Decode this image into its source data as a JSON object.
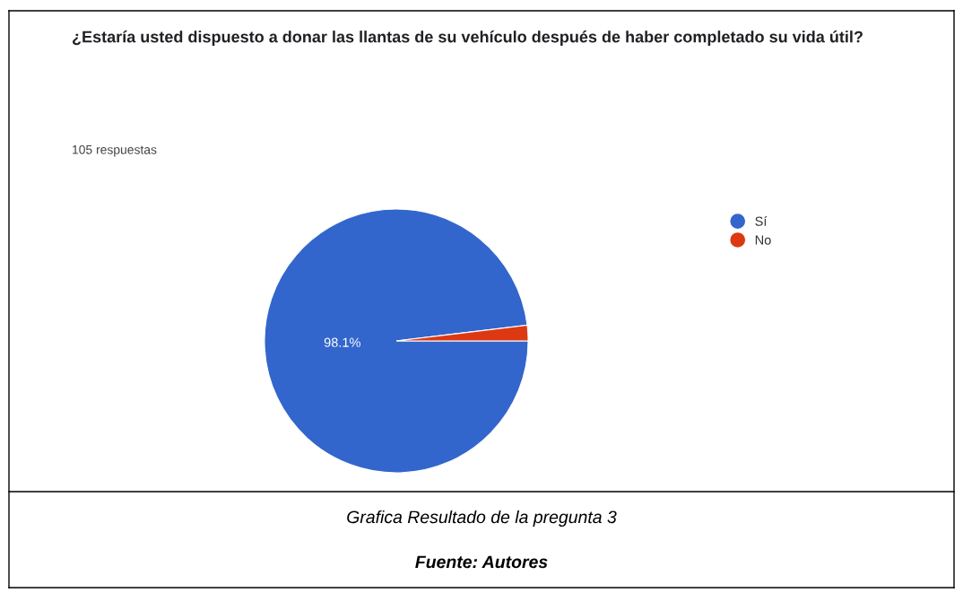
{
  "chart_data": {
    "type": "pie",
    "title": "¿Estaría usted dispuesto a donar las llantas de su vehículo después de haber completado su vida útil?",
    "subtitle": "105 respuestas",
    "categories": [
      "Sí",
      "No"
    ],
    "values": [
      98.1,
      1.9
    ],
    "colors": [
      "#3366cc",
      "#dc3912"
    ],
    "value_labels": [
      "98.1%",
      null
    ],
    "legend": "top right",
    "annotations": [
      "Grafica Resultado de la pregunta 3",
      "Fuente: Autores"
    ]
  }
}
